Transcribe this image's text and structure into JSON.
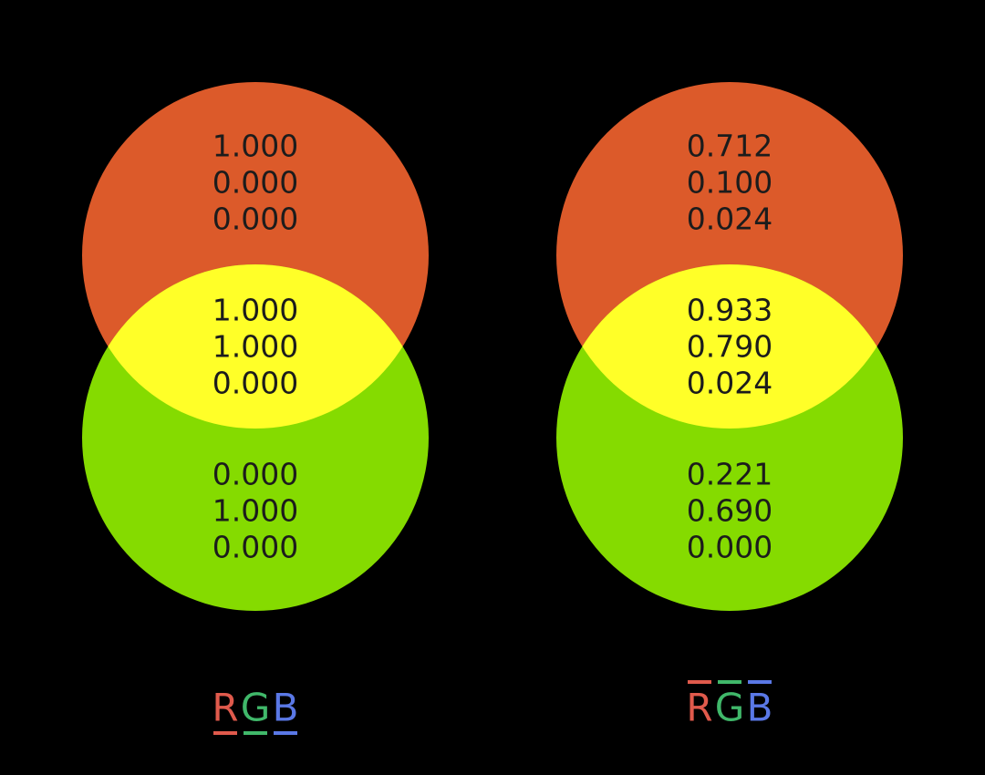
{
  "colors": {
    "background": "#000000",
    "red_region": "#dc5a2a",
    "green_region": "#85db00",
    "overlap_region": "#ffff28",
    "value_text": "#1c1c1c",
    "label_red": "#e05a4c",
    "label_green": "#40b86a",
    "label_blue": "#5a78e6"
  },
  "diagrams": [
    {
      "top": [
        "1.000",
        "0.000",
        "0.000"
      ],
      "overlap": [
        "1.000",
        "1.000",
        "0.000"
      ],
      "bottom": [
        "0.000",
        "1.000",
        "0.000"
      ],
      "label": {
        "r": "R",
        "g": "G",
        "b": "B",
        "bar_style": "underline"
      }
    },
    {
      "top": [
        "0.712",
        "0.100",
        "0.024"
      ],
      "overlap": [
        "0.933",
        "0.790",
        "0.024"
      ],
      "bottom": [
        "0.221",
        "0.690",
        "0.000"
      ],
      "label": {
        "r": "R",
        "g": "G",
        "b": "B",
        "bar_style": "overline"
      }
    }
  ]
}
